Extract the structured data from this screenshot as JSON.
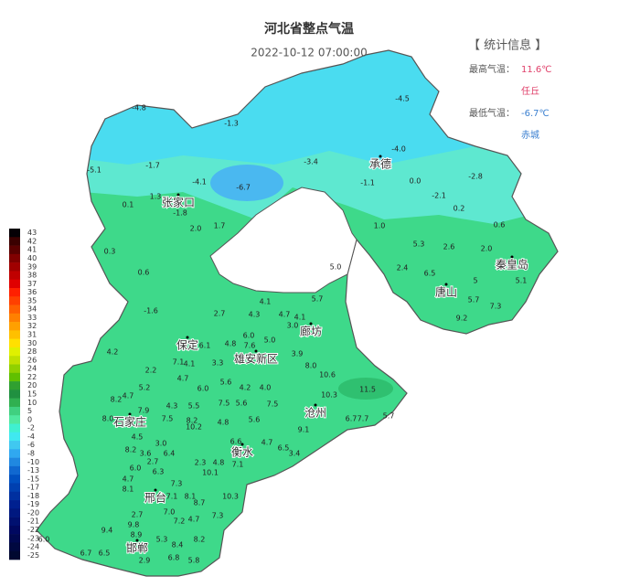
{
  "header": {
    "title": "河北省整点气温",
    "time": "2022-10-12 07:00:00"
  },
  "stats": {
    "title": "【 统计信息 】",
    "max_label": "最高气温：",
    "max_value": "11.6℃",
    "max_station": "任丘",
    "min_label": "最低气温：",
    "min_value": "-6.7℃",
    "min_station": "赤城"
  },
  "legend": {
    "ticks": [
      "43",
      "42",
      "41",
      "40",
      "39",
      "38",
      "37",
      "36",
      "35",
      "34",
      "33",
      "32",
      "31",
      "30",
      "28",
      "26",
      "24",
      "22",
      "20",
      "15",
      "10",
      "5",
      "0",
      "-2",
      "-4",
      "-6",
      "-8",
      "-10",
      "-13",
      "-15",
      "-17",
      "-18",
      "-19",
      "-20",
      "-21",
      "-22",
      "-23",
      "-24",
      "-25"
    ],
    "colors": [
      "#050005",
      "#3a0000",
      "#5a0000",
      "#800000",
      "#a00000",
      "#c00000",
      "#e00000",
      "#ff2000",
      "#ff4000",
      "#ff6000",
      "#ff8000",
      "#ffa000",
      "#ffc000",
      "#ffe000",
      "#e0f000",
      "#c0e000",
      "#90d000",
      "#60c000",
      "#30a030",
      "#209040",
      "#30b050",
      "#40d080",
      "#50e8a0",
      "#40f0d0",
      "#40e8f0",
      "#40c8f0",
      "#30a8f0",
      "#2088e0",
      "#1068d0",
      "#0050c0",
      "#0040b0",
      "#0030a0",
      "#002090",
      "#001880",
      "#001070",
      "#000860",
      "#000850",
      "#000840",
      "#000830"
    ]
  },
  "cities": [
    "承德",
    "张家口",
    "秦皇岛",
    "唐山",
    "廊坊",
    "保定",
    "雄安新区",
    "沧州",
    "石家庄",
    "衡水",
    "邢台",
    "邯郸"
  ],
  "stations": [
    "-4.8",
    "-1.3",
    "-4.5",
    "-4.0",
    "-3.4",
    "-5.1",
    "-1.7",
    "-4.1",
    "-6.7",
    "-1.1",
    "0.0",
    "-2.8",
    "-2.1",
    "1.3",
    "-1.8",
    "0.1",
    "0.2",
    "2.0",
    "1.7",
    "1.0",
    "0.6",
    "5.3",
    "2.6",
    "2.0",
    "0.3",
    "5.0",
    "2.4",
    "6.5",
    "5",
    "5.1",
    "0.6",
    "5.7",
    "5.7",
    "4.1",
    "7.3",
    "-1.6",
    "2.7",
    "4.3",
    "4.7",
    "9.2",
    "4.1",
    "3.0",
    "6.0",
    "5.0",
    "4.2",
    "6.1",
    "4.8",
    "7.6",
    "3.9",
    "7.1",
    "4.1",
    "3.3",
    "2.2",
    "8.0",
    "10.6",
    "4.7",
    "5.6",
    "6.0",
    "4.2",
    "4.0",
    "5.2",
    "11.5",
    "4.7",
    "10.3",
    "8.2",
    "7.5",
    "5.6",
    "7.5",
    "4.3",
    "5.5",
    "7.9",
    "8.0",
    "7.5",
    "8.2",
    "4.8",
    "5.6",
    "6.7",
    "7.7",
    "5.7",
    "10.2",
    "4.5",
    "9.1",
    "3.0",
    "6.6",
    "4.7",
    "8.2",
    "3.6",
    "6.4",
    "6.5",
    "3.4",
    "2.7",
    "2.3",
    "4.8",
    "7.1",
    "6.0",
    "6.3",
    "10.1",
    "4.7",
    "8.1",
    "7.3",
    "7.1",
    "8.1",
    "10.3",
    "8.7",
    "7.0",
    "2.7",
    "9.8",
    "7.2",
    "4.7",
    "7.3",
    "9.4",
    "8.9",
    "5.3",
    "8.4",
    "8.2",
    "6.0",
    "6.7",
    "6.5",
    "2.9",
    "6.8",
    "5.8"
  ]
}
